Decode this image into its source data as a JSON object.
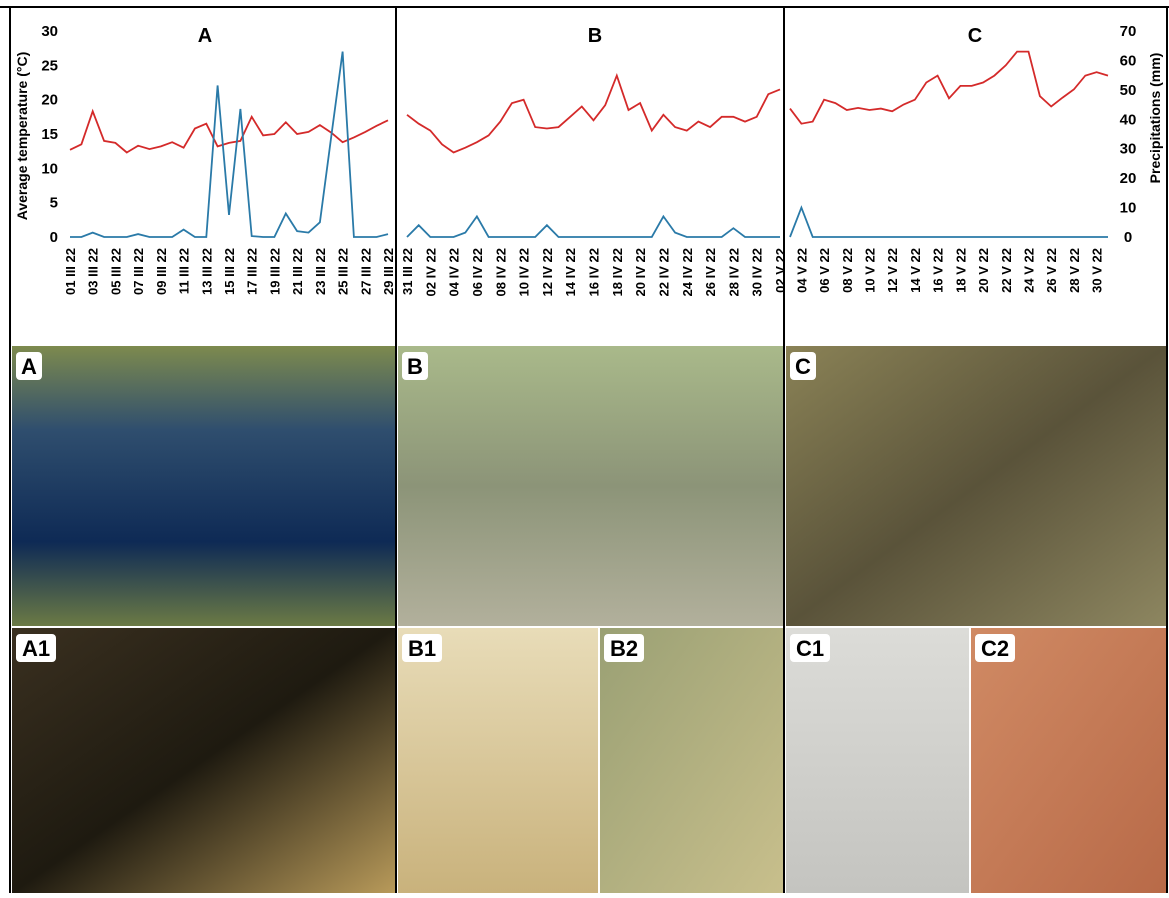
{
  "chart_data": [
    {
      "type": "line",
      "title": "A",
      "y_label": "Average temperature (°C)",
      "ylim": [
        0,
        30
      ],
      "yticks": [
        0,
        5,
        10,
        15,
        20,
        25,
        30
      ],
      "y2lim": [
        0,
        70
      ],
      "categories": [
        "01 III 22",
        null,
        "03 III 22",
        null,
        "05 III 22",
        null,
        "07 III 22",
        null,
        "09 III 22",
        null,
        "11 III 22",
        null,
        "13 III 22",
        null,
        "15 III 22",
        null,
        "17 III 22",
        null,
        "19 III 22",
        null,
        "21 III 22",
        null,
        "23 III 22",
        null,
        "25 III 22",
        null,
        "27 III 22",
        null,
        "29 III 22"
      ],
      "series": [
        {
          "color": "#d42a2a",
          "values": [
            12.7,
            13.5,
            18.3,
            14,
            13.7,
            12.3,
            13.3,
            12.8,
            13.2,
            13.8,
            13,
            15.8,
            16.5,
            13.2,
            13.7,
            14,
            17.5,
            14.8,
            15,
            16.7,
            15,
            15.3,
            16.3,
            15.2,
            13.8,
            14.5,
            15.3,
            16.2,
            17
          ]
        },
        {
          "color": "#2a7aa8",
          "axis": "y2",
          "values": [
            0,
            0,
            1.5,
            0,
            0,
            0,
            1,
            0,
            0,
            0,
            2.5,
            0,
            0,
            51.5,
            7.5,
            43.5,
            0.3,
            0,
            0,
            8,
            2,
            1.5,
            5,
            34,
            63,
            0,
            0,
            0,
            1
          ]
        }
      ]
    },
    {
      "type": "line",
      "title": "B",
      "ylim": [
        0,
        30
      ],
      "y2lim": [
        0,
        70
      ],
      "categories": [
        "31 III 22",
        null,
        "02 IV 22",
        null,
        "04 IV 22",
        null,
        "06 IV 22",
        null,
        "08 IV 22",
        null,
        "10 IV 22",
        null,
        "12 IV 22",
        null,
        "14 IV 22",
        null,
        "16 IV 22",
        null,
        "18 IV 22",
        null,
        "20 IV 22",
        null,
        "22 IV 22",
        null,
        "24 IV 22",
        null,
        "26 IV 22",
        null,
        "28 IV 22",
        null,
        "30 IV 22",
        null,
        "02 V 22"
      ],
      "series": [
        {
          "color": "#d42a2a",
          "values": [
            17.8,
            16.5,
            15.5,
            13.5,
            12.3,
            13,
            13.8,
            14.8,
            16.8,
            19.5,
            20,
            16,
            15.8,
            16,
            17.5,
            19,
            17,
            19.2,
            23.5,
            18.5,
            19.5,
            15.5,
            17.8,
            16,
            15.5,
            16.8,
            16,
            17.5,
            17.5,
            16.8,
            17.5,
            20.8,
            21.5
          ]
        },
        {
          "color": "#2a7aa8",
          "axis": "y2",
          "values": [
            0,
            4,
            0,
            0,
            0,
            1.5,
            7,
            0,
            0,
            0,
            0,
            0,
            4,
            0,
            0,
            0,
            0,
            0,
            0,
            0,
            0,
            0,
            7,
            1.5,
            0,
            0,
            0,
            0,
            3,
            0,
            0,
            0,
            0
          ]
        }
      ]
    },
    {
      "type": "line",
      "title": "C",
      "y2_label": "Precipitations (mm)",
      "ylim": [
        0,
        30
      ],
      "y2lim": [
        0,
        70
      ],
      "y2ticks": [
        0,
        10,
        20,
        30,
        40,
        50,
        60,
        70
      ],
      "categories": [
        null,
        "04 V 22",
        null,
        "06 V 22",
        null,
        "08 V 22",
        null,
        "10 V 22",
        null,
        "12 V 22",
        null,
        "14 V 22",
        null,
        "16 V 22",
        null,
        "18 V 22",
        null,
        "20 V 22",
        null,
        "22 V 22",
        null,
        "24 V 22",
        null,
        "26 V 22",
        null,
        "28 V 22",
        null,
        "30 V 22",
        null
      ],
      "series": [
        {
          "color": "#d42a2a",
          "values": [
            18.7,
            16.5,
            16.8,
            20,
            19.5,
            18.5,
            18.8,
            18.5,
            18.7,
            18.3,
            19.3,
            20,
            22.5,
            23.5,
            20.2,
            22,
            22,
            22.5,
            23.5,
            25,
            27,
            27,
            20.5,
            19,
            20.3,
            21.5,
            23.5,
            24,
            23.5
          ]
        },
        {
          "color": "#2a7aa8",
          "axis": "y2",
          "values": [
            0,
            10,
            0,
            0,
            0,
            0,
            0,
            0,
            0,
            0,
            0,
            0,
            0,
            0,
            0,
            0,
            0,
            0,
            0,
            0,
            0,
            0,
            0,
            0,
            0,
            0,
            0,
            0,
            0
          ]
        }
      ]
    }
  ],
  "photos": [
    {
      "label": "A"
    },
    {
      "label": "B"
    },
    {
      "label": "C"
    },
    {
      "label": "A1"
    },
    {
      "label": "B1"
    },
    {
      "label": "B2"
    },
    {
      "label": "C1"
    },
    {
      "label": "C2"
    }
  ]
}
